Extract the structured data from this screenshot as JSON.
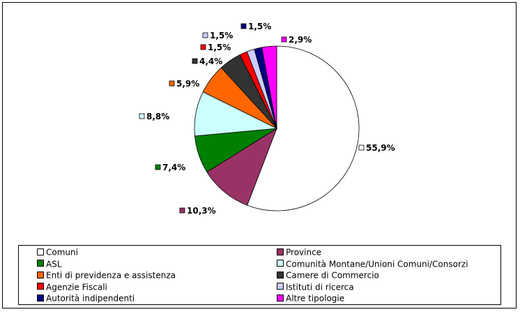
{
  "chart_data": {
    "type": "pie",
    "title": "",
    "start_angle": "12 o'clock",
    "direction": "clockwise",
    "slices": [
      {
        "label": "Comuni",
        "value": 55.9,
        "display": "55,9%",
        "color": "#ffffff"
      },
      {
        "label": "Province",
        "value": 10.3,
        "display": "10,3%",
        "color": "#993366"
      },
      {
        "label": "ASL",
        "value": 7.4,
        "display": "7,4%",
        "color": "#008000"
      },
      {
        "label": "Comunità Montane/Unioni Comuni/Consorzi",
        "value": 8.8,
        "display": "8,8%",
        "color": "#ccffff"
      },
      {
        "label": "Enti di previdenza e assistenza",
        "value": 5.9,
        "display": "5,9%",
        "color": "#ff6600"
      },
      {
        "label": "Camere di Commercio",
        "value": 4.4,
        "display": "4,4%",
        "color": "#333333"
      },
      {
        "label": "Agenzie Fiscali",
        "value": 1.5,
        "display": "1,5%",
        "color": "#ff0000"
      },
      {
        "label": "Istituti di ricerca",
        "value": 1.5,
        "display": "1,5%",
        "color": "#ccccff"
      },
      {
        "label": "Autorità indipendenti",
        "value": 1.5,
        "display": "1,5%",
        "color": "#000080"
      },
      {
        "label": "Altre tipologie",
        "value": 2.9,
        "display": "2,9%",
        "color": "#ff00ff"
      }
    ],
    "legend": {
      "placement": "bottom",
      "columns": 2,
      "items": [
        "Comuni",
        "Province",
        "ASL",
        "Comunità Montane/Unioni Comuni/Consorzi",
        "Enti di previdenza e assistenza",
        "Camere di Commercio",
        "Agenzie Fiscali",
        "Istituti di ricerca",
        "Autorità indipendenti",
        "Altre tipologie"
      ]
    }
  }
}
